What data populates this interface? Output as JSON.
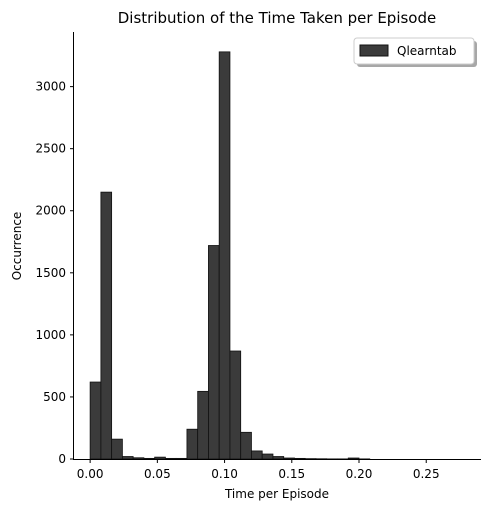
{
  "chart_data": {
    "type": "bar",
    "title": "Distribution of the Time Taken per Episode",
    "xlabel": "Time per Episode",
    "ylabel": "Occurrence",
    "xlim": [
      -0.012,
      0.29
    ],
    "ylim": [
      0,
      3440
    ],
    "grid": false,
    "legend_position": "top-right",
    "xticks": [
      {
        "value": 0.0,
        "label": "0.00"
      },
      {
        "value": 0.05,
        "label": "0.05"
      },
      {
        "value": 0.1,
        "label": "0.10"
      },
      {
        "value": 0.15,
        "label": "0.15"
      },
      {
        "value": 0.2,
        "label": "0.20"
      },
      {
        "value": 0.25,
        "label": "0.25"
      }
    ],
    "yticks": [
      {
        "value": 0,
        "label": "0"
      },
      {
        "value": 500,
        "label": "500"
      },
      {
        "value": 1000,
        "label": "1000"
      },
      {
        "value": 1500,
        "label": "1500"
      },
      {
        "value": 2000,
        "label": "2000"
      },
      {
        "value": 2500,
        "label": "2500"
      },
      {
        "value": 3000,
        "label": "3000"
      }
    ],
    "series": [
      {
        "name": "Qlearntab",
        "color": "#3b3b3b",
        "edge_color": "#111111",
        "bins": [
          {
            "x0": 0.0,
            "x1": 0.008,
            "count": 620
          },
          {
            "x0": 0.008,
            "x1": 0.016,
            "count": 2150
          },
          {
            "x0": 0.016,
            "x1": 0.024,
            "count": 160
          },
          {
            "x0": 0.024,
            "x1": 0.032,
            "count": 20
          },
          {
            "x0": 0.032,
            "x1": 0.04,
            "count": 10
          },
          {
            "x0": 0.04,
            "x1": 0.048,
            "count": 5
          },
          {
            "x0": 0.048,
            "x1": 0.056,
            "count": 15
          },
          {
            "x0": 0.056,
            "x1": 0.064,
            "count": 5
          },
          {
            "x0": 0.064,
            "x1": 0.072,
            "count": 5
          },
          {
            "x0": 0.072,
            "x1": 0.08,
            "count": 240
          },
          {
            "x0": 0.08,
            "x1": 0.088,
            "count": 545
          },
          {
            "x0": 0.088,
            "x1": 0.096,
            "count": 1720
          },
          {
            "x0": 0.096,
            "x1": 0.104,
            "count": 3280
          },
          {
            "x0": 0.104,
            "x1": 0.112,
            "count": 870
          },
          {
            "x0": 0.112,
            "x1": 0.12,
            "count": 215
          },
          {
            "x0": 0.12,
            "x1": 0.128,
            "count": 65
          },
          {
            "x0": 0.128,
            "x1": 0.136,
            "count": 40
          },
          {
            "x0": 0.136,
            "x1": 0.144,
            "count": 20
          },
          {
            "x0": 0.144,
            "x1": 0.152,
            "count": 8
          },
          {
            "x0": 0.152,
            "x1": 0.16,
            "count": 5
          },
          {
            "x0": 0.16,
            "x1": 0.168,
            "count": 3
          },
          {
            "x0": 0.168,
            "x1": 0.176,
            "count": 2
          },
          {
            "x0": 0.176,
            "x1": 0.184,
            "count": 1
          },
          {
            "x0": 0.184,
            "x1": 0.192,
            "count": 1
          },
          {
            "x0": 0.192,
            "x1": 0.2,
            "count": 8
          },
          {
            "x0": 0.2,
            "x1": 0.208,
            "count": 1
          }
        ]
      }
    ]
  }
}
